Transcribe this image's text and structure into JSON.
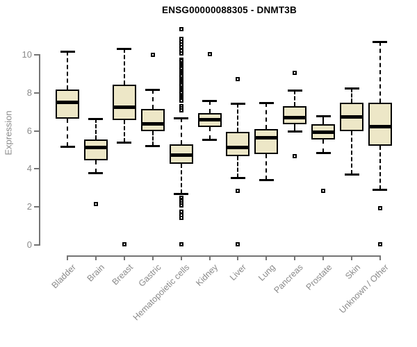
{
  "page": {
    "background": "#ffffff"
  },
  "chart_data": {
    "type": "boxplot",
    "title": "ENSG00000088305 - DNMT3B",
    "ylabel": "Expression",
    "xlabel": "",
    "ylim": [
      0,
      10.7
    ],
    "yticks": [
      0,
      2,
      4,
      6,
      8,
      10
    ],
    "grid": false,
    "legend_position": "none",
    "box_fill": "#EDE7C7",
    "box_border": "#000000",
    "axis_color": "#747474",
    "tick_label_color": "#8a8a8a",
    "title_color": "#000000",
    "categories": [
      "Bladder",
      "Brain",
      "Breast",
      "Gastric",
      "Hematopoietic cells",
      "Kidney",
      "Liver",
      "Lung",
      "Pancreas",
      "Prostate",
      "Skin",
      "Unknown / Other"
    ],
    "boxes": [
      {
        "category": "Bladder",
        "whisker_low": 5.15,
        "q1": 6.6,
        "median": 7.45,
        "q3": 8.15,
        "whisker_high": 10.15,
        "outliers": []
      },
      {
        "category": "Brain",
        "whisker_low": 3.75,
        "q1": 4.4,
        "median": 5.1,
        "q3": 5.5,
        "whisker_high": 6.6,
        "outliers": [
          2.1
        ]
      },
      {
        "category": "Breast",
        "whisker_low": 5.35,
        "q1": 6.55,
        "median": 7.2,
        "q3": 8.4,
        "whisker_high": 10.3,
        "outliers": [
          0
        ]
      },
      {
        "category": "Gastric",
        "whisker_low": 5.2,
        "q1": 5.95,
        "median": 6.35,
        "q3": 7.1,
        "whisker_high": 8.15,
        "outliers": [
          9.95
        ]
      },
      {
        "category": "Hematopoietic cells",
        "whisker_low": 2.65,
        "q1": 4.25,
        "median": 4.7,
        "q3": 5.25,
        "whisker_high": 6.65,
        "outliers": [
          11.3,
          10.8,
          10.65,
          10.5,
          10.35,
          10.2,
          10.05,
          9.7,
          9.62,
          9.54,
          9.46,
          9.38,
          9.3,
          9.22,
          9.14,
          9.06,
          8.98,
          8.9,
          8.82,
          8.74,
          8.66,
          8.58,
          8.5,
          8.42,
          8.34,
          8.26,
          8.18,
          8.1,
          8.02,
          7.94,
          7.86,
          7.78,
          7.7,
          7.62,
          7.54,
          7.25,
          7.15,
          7.05,
          2.45,
          2.35,
          2.25,
          2.15,
          2.05,
          1.7,
          1.55,
          1.4,
          0
        ]
      },
      {
        "category": "Kidney",
        "whisker_low": 5.5,
        "q1": 6.15,
        "median": 6.55,
        "q3": 6.9,
        "whisker_high": 7.55,
        "outliers": [
          10.0
        ]
      },
      {
        "category": "Liver",
        "whisker_low": 3.5,
        "q1": 4.65,
        "median": 5.1,
        "q3": 5.9,
        "whisker_high": 7.4,
        "outliers": [
          8.7,
          2.8,
          0
        ]
      },
      {
        "category": "Lung",
        "whisker_low": 3.4,
        "q1": 4.75,
        "median": 5.6,
        "q3": 6.05,
        "whisker_high": 7.45,
        "outliers": []
      },
      {
        "category": "Pancreas",
        "whisker_low": 5.95,
        "q1": 6.3,
        "median": 6.65,
        "q3": 7.25,
        "whisker_high": 8.1,
        "outliers": [
          9.0,
          4.65
        ]
      },
      {
        "category": "Prostate",
        "whisker_low": 4.8,
        "q1": 5.5,
        "median": 5.9,
        "q3": 6.3,
        "whisker_high": 6.75,
        "outliers": [
          2.8
        ]
      },
      {
        "category": "Skin",
        "whisker_low": 3.7,
        "q1": 5.95,
        "median": 6.7,
        "q3": 7.45,
        "whisker_high": 8.2,
        "outliers": []
      },
      {
        "category": "Unknown / Other",
        "whisker_low": 2.9,
        "q1": 5.2,
        "median": 6.2,
        "q3": 7.45,
        "whisker_high": 10.65,
        "outliers": [
          1.9,
          0
        ]
      }
    ]
  }
}
